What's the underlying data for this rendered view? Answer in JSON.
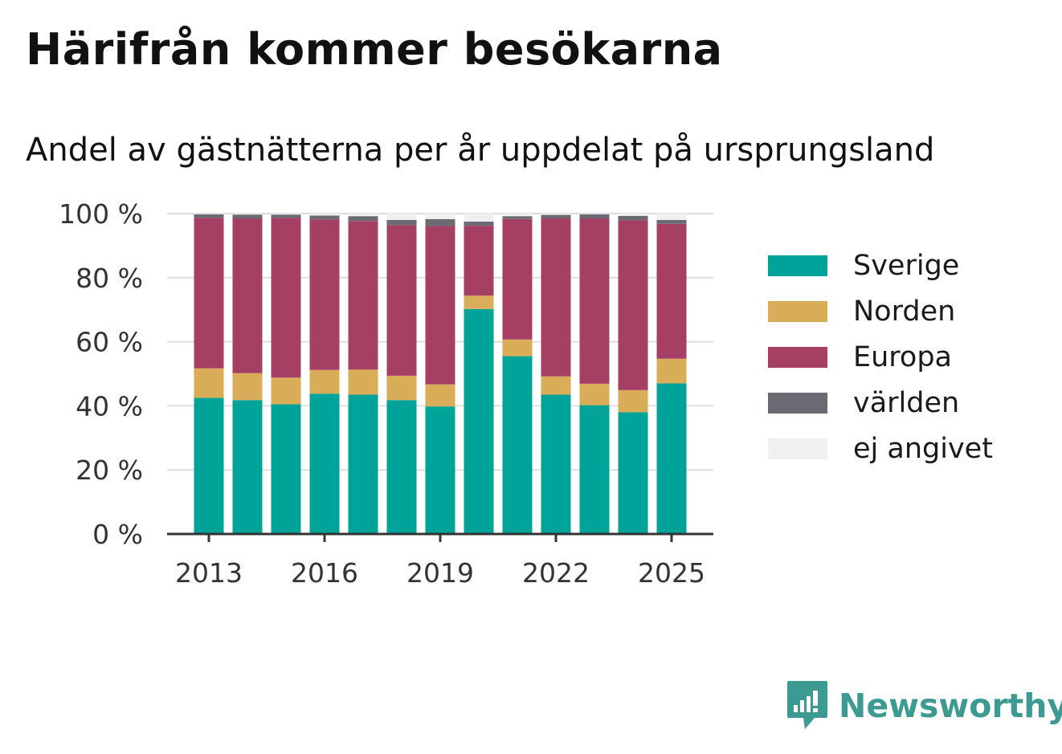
{
  "title": "Härifrån kommer besökarna",
  "subtitle": "Andel av gästnätterna per år uppdelat på ursprungsland",
  "brand": {
    "name": "Newsworthy",
    "icon": "newsworthy-logo-icon",
    "color": "#3c9a92"
  },
  "colors": {
    "Sverige": "#00a398",
    "Norden": "#d9ad57",
    "Europa": "#a63f64",
    "världen": "#6b6a72",
    "ej angivet": "#f1f0f1"
  },
  "chart_data": {
    "type": "bar",
    "stacked": true,
    "categories": [
      "2013",
      "2014",
      "2015",
      "2016",
      "2017",
      "2018",
      "2019",
      "2020",
      "2021",
      "2022",
      "2023",
      "2024",
      "2025"
    ],
    "x_tick_labels": [
      "2013",
      "2016",
      "2019",
      "2022",
      "2025"
    ],
    "y_tick_labels": [
      "0 %",
      "20 %",
      "40 %",
      "60 %",
      "80 %",
      "100 %"
    ],
    "y_ticks": [
      0,
      20,
      40,
      60,
      80,
      100
    ],
    "ylim": [
      0,
      100
    ],
    "grid": true,
    "legend_position": "right",
    "series": [
      {
        "name": "Sverige",
        "values": [
          42.5,
          41.8,
          40.5,
          43.8,
          43.5,
          41.8,
          39.8,
          70.2,
          55.5,
          43.5,
          40.2,
          38.0,
          47.0
        ]
      },
      {
        "name": "Norden",
        "values": [
          9.2,
          8.4,
          8.3,
          7.4,
          7.8,
          7.6,
          6.9,
          4.2,
          5.2,
          5.7,
          6.7,
          6.9,
          7.7
        ]
      },
      {
        "name": "Europa",
        "values": [
          47.0,
          48.3,
          49.9,
          47.0,
          46.4,
          47.0,
          49.4,
          21.8,
          37.6,
          49.3,
          51.6,
          53.0,
          42.1
        ]
      },
      {
        "name": "världen",
        "values": [
          1.1,
          1.2,
          1.0,
          1.2,
          1.5,
          1.6,
          2.2,
          1.3,
          0.9,
          1.1,
          1.3,
          1.4,
          1.2
        ]
      },
      {
        "name": "ej angivet",
        "values": [
          0.2,
          0.3,
          0.3,
          0.6,
          0.8,
          2.0,
          1.7,
          2.5,
          0.8,
          0.4,
          0.2,
          0.7,
          2.0
        ]
      }
    ]
  }
}
